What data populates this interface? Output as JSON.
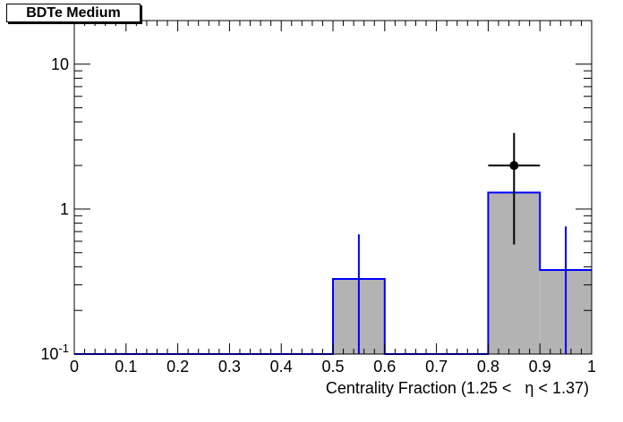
{
  "chart_data": {
    "type": "bar",
    "title": "BDTe Medium",
    "xlabel": "Centrality Fraction (1.25 <   η < 1.37)",
    "ylabel": "",
    "xlim": [
      0,
      1
    ],
    "ylim": [
      0.1,
      20
    ],
    "yscale": "log",
    "grid": false,
    "x_ticks": [
      "0",
      "0.1",
      "0.2",
      "0.3",
      "0.4",
      "0.5",
      "0.6",
      "0.7",
      "0.8",
      "0.9",
      "1"
    ],
    "y_ticks": [
      {
        "value": 0.1,
        "base": "10",
        "exp": "-1"
      },
      {
        "value": 1,
        "label": "1"
      },
      {
        "value": 10,
        "label": "10"
      }
    ],
    "histogram": {
      "bins": [
        {
          "x0": 0.0,
          "x1": 0.1,
          "value": 0
        },
        {
          "x0": 0.1,
          "x1": 0.2,
          "value": 0
        },
        {
          "x0": 0.2,
          "x1": 0.3,
          "value": 0
        },
        {
          "x0": 0.3,
          "x1": 0.4,
          "value": 0
        },
        {
          "x0": 0.4,
          "x1": 0.5,
          "value": 0
        },
        {
          "x0": 0.5,
          "x1": 0.6,
          "value": 0.33,
          "err_hi": 0.67
        },
        {
          "x0": 0.6,
          "x1": 0.7,
          "value": 0
        },
        {
          "x0": 0.7,
          "x1": 0.8,
          "value": 0
        },
        {
          "x0": 0.8,
          "x1": 0.9,
          "value": 1.3
        },
        {
          "x0": 0.9,
          "x1": 1.0,
          "value": 0.38,
          "err_hi": 0.76
        }
      ],
      "fill_color": "#b3b3b3",
      "line_color": "#0000ff"
    },
    "data_points": [
      {
        "x": 0.85,
        "y": 2.0,
        "x_err": 0.05,
        "y_low": 0.57,
        "y_high": 3.35
      }
    ],
    "marker_color": "#000000"
  }
}
